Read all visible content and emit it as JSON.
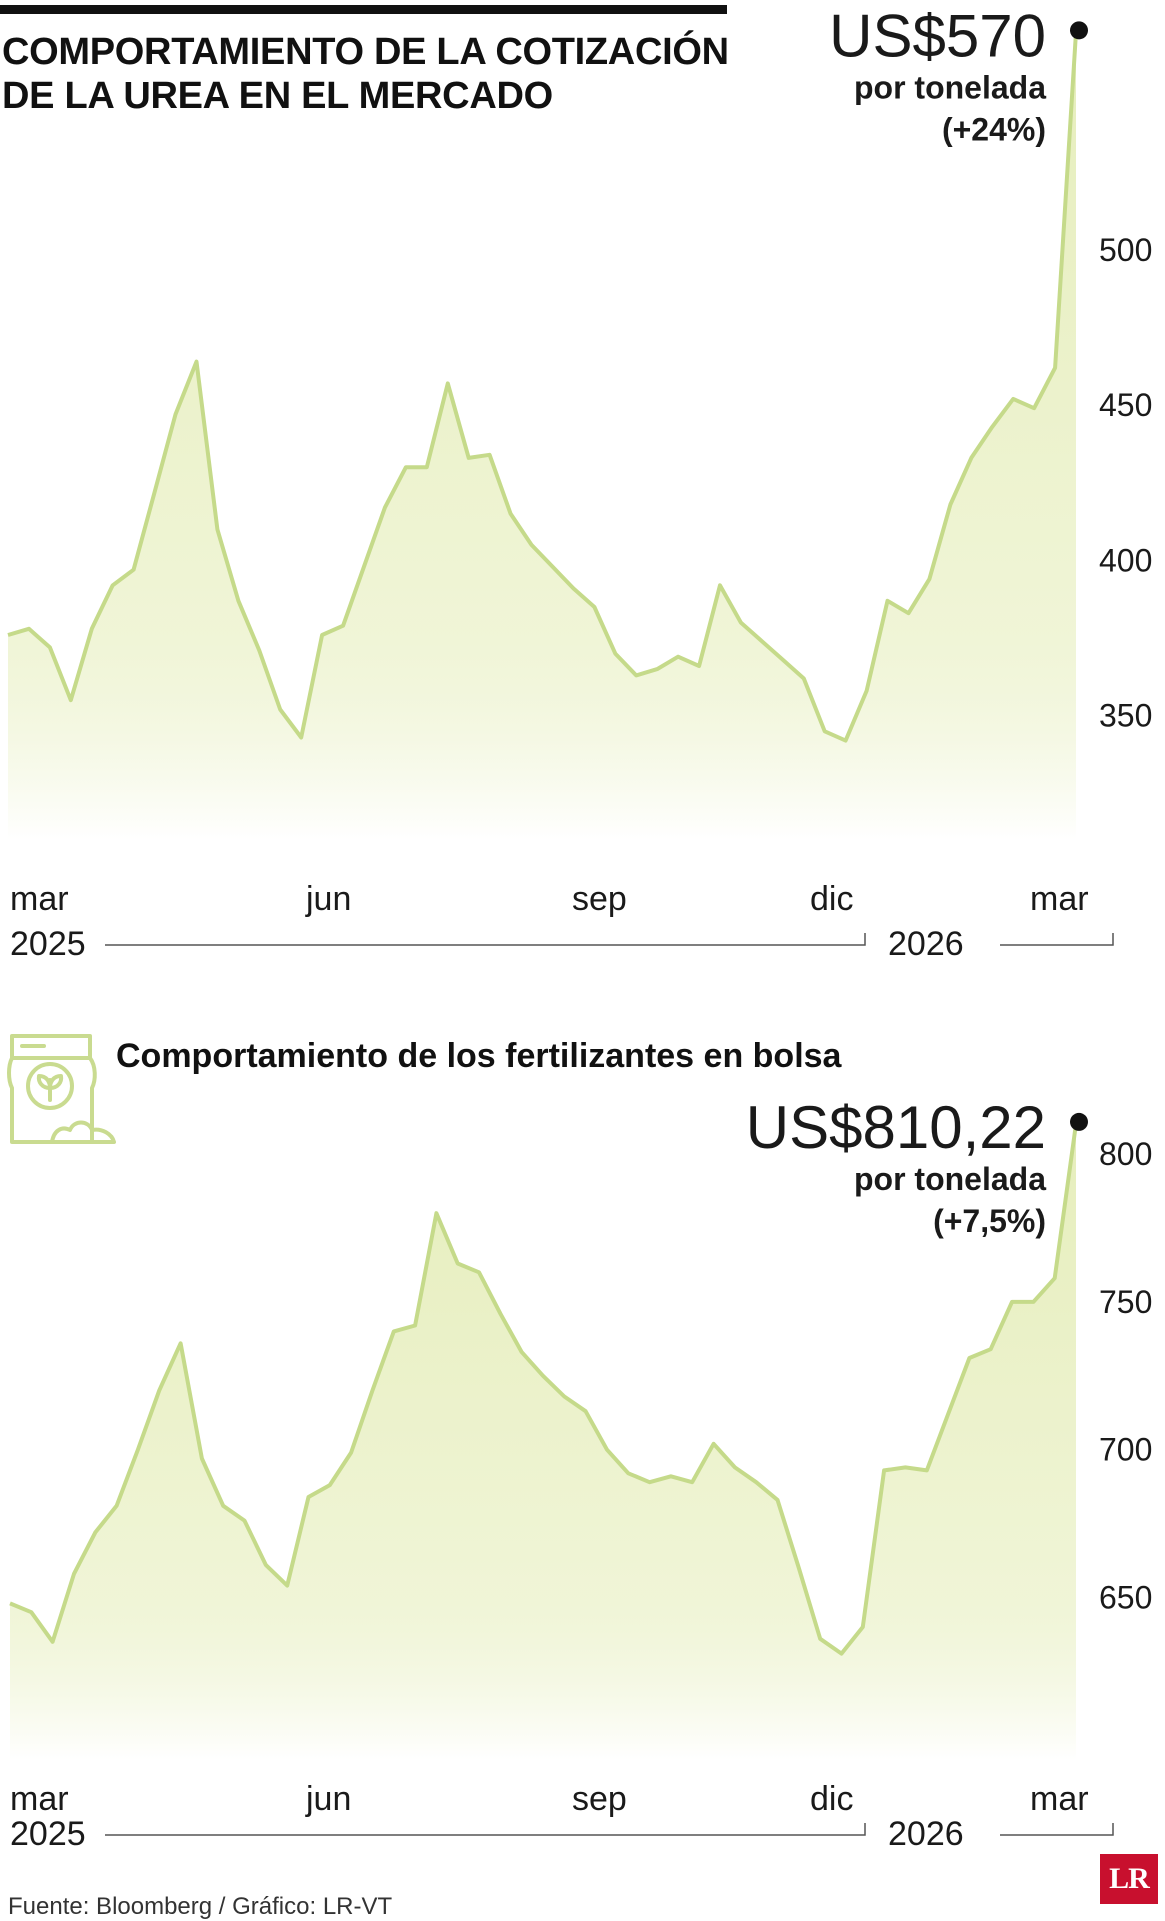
{
  "title": "COMPORTAMIENTO DE LA COTIZACIÓN DE LA UREA EN EL MERCADO",
  "source": "Fuente: Bloomberg / Gráfico: LR-VT",
  "logo": "LR",
  "colors": {
    "line": "#c5da8a",
    "fill_top": "#e6eebc",
    "fill_bottom": "#ffffff",
    "text": "#1a1a1a"
  },
  "icons": {
    "fertilizer_bag": "fertilizer-bag-icon"
  },
  "chart_data": [
    {
      "type": "area",
      "title": "COMPORTAMIENTO DE LA COTIZACIÓN DE LA UREA EN EL MERCADO",
      "ylim": [
        310,
        545
      ],
      "yticks": [
        350,
        400,
        450,
        500
      ],
      "xticks": [
        {
          "label": "mar",
          "at": 0
        },
        {
          "label": "jun",
          "at": 14
        },
        {
          "label": "sep",
          "at": 27
        },
        {
          "label": "dic",
          "at": 40
        },
        {
          "label": "mar",
          "at": 52
        }
      ],
      "year_labels": [
        {
          "label": "2025",
          "at": 0
        },
        {
          "label": "2026",
          "at": 44
        }
      ],
      "values": [
        376,
        378,
        372,
        355,
        378,
        392,
        397,
        422,
        447,
        464,
        410,
        387,
        371,
        352,
        343,
        376,
        379,
        398,
        417,
        430,
        430,
        457,
        433,
        434,
        415,
        405,
        398,
        391,
        385,
        370,
        363,
        365,
        369,
        366,
        392,
        380,
        374,
        368,
        362,
        345,
        342,
        358,
        387,
        383,
        394,
        418,
        433,
        443,
        452,
        449,
        462,
        570
      ],
      "highlight": {
        "value": "US$570",
        "unit": "por tonelada",
        "change": "(+24%)"
      }
    },
    {
      "type": "area",
      "title": "Comportamiento de los fertilizantes en bolsa",
      "ylim": [
        595,
        820
      ],
      "yticks": [
        650,
        700,
        750,
        800
      ],
      "xticks": [
        {
          "label": "mar",
          "at": 0
        },
        {
          "label": "jun",
          "at": 14
        },
        {
          "label": "sep",
          "at": 27
        },
        {
          "label": "dic",
          "at": 40
        },
        {
          "label": "mar",
          "at": 52
        }
      ],
      "year_labels": [
        {
          "label": "2025",
          "at": 0
        },
        {
          "label": "2026",
          "at": 44
        }
      ],
      "values": [
        648,
        645,
        635,
        658,
        672,
        681,
        700,
        720,
        736,
        697,
        681,
        676,
        661,
        654,
        684,
        688,
        699,
        720,
        740,
        742,
        780,
        763,
        760,
        746,
        733,
        725,
        718,
        713,
        700,
        692,
        689,
        691,
        689,
        702,
        694,
        689,
        683,
        660,
        636,
        631,
        640,
        693,
        694,
        693,
        712,
        731,
        734,
        750,
        750,
        758,
        810.22
      ],
      "highlight": {
        "value": "US$810,22",
        "unit": "por tonelada",
        "change": "(+7,5%)"
      }
    }
  ]
}
